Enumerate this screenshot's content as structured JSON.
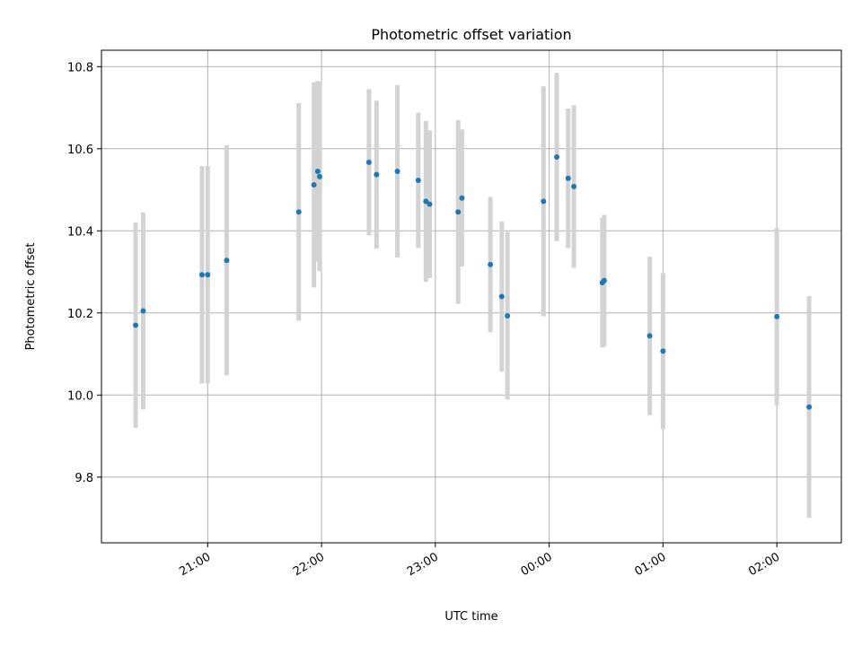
{
  "chart_data": {
    "type": "scatter",
    "title": "Photometric offset variation",
    "xlabel": "UTC time",
    "ylabel": "Photometric offset",
    "x_is_time": true,
    "xlim": [
      "20:04",
      "02:34"
    ],
    "ylim": [
      9.64,
      10.84
    ],
    "x_ticks": [
      "21:00",
      "22:00",
      "23:00",
      "00:00",
      "01:00",
      "02:00"
    ],
    "y_ticks": [
      9.8,
      10.0,
      10.2,
      10.4,
      10.6,
      10.8
    ],
    "grid": true,
    "point_color": "#1f77b4",
    "errorbar_color": "#d3d3d3",
    "points": [
      {
        "t": "20:22",
        "y": 10.17,
        "err": 0.25
      },
      {
        "t": "20:26",
        "y": 10.205,
        "err": 0.24
      },
      {
        "t": "20:57",
        "y": 10.293,
        "err": 0.265
      },
      {
        "t": "21:00",
        "y": 10.293,
        "err": 0.265
      },
      {
        "t": "21:10",
        "y": 10.328,
        "err": 0.28
      },
      {
        "t": "21:48",
        "y": 10.446,
        "err": 0.265
      },
      {
        "t": "21:56",
        "y": 10.512,
        "err": 0.25
      },
      {
        "t": "21:58",
        "y": 10.545,
        "err": 0.22
      },
      {
        "t": "21:59",
        "y": 10.532,
        "err": 0.23
      },
      {
        "t": "22:25",
        "y": 10.567,
        "err": 0.178
      },
      {
        "t": "22:29",
        "y": 10.537,
        "err": 0.18
      },
      {
        "t": "22:40",
        "y": 10.545,
        "err": 0.21
      },
      {
        "t": "22:51",
        "y": 10.523,
        "err": 0.165
      },
      {
        "t": "22:55",
        "y": 10.472,
        "err": 0.196
      },
      {
        "t": "22:57",
        "y": 10.465,
        "err": 0.18
      },
      {
        "t": "23:12",
        "y": 10.446,
        "err": 0.224
      },
      {
        "t": "23:14",
        "y": 10.48,
        "err": 0.167
      },
      {
        "t": "23:29",
        "y": 10.318,
        "err": 0.165
      },
      {
        "t": "23:35",
        "y": 10.24,
        "err": 0.183
      },
      {
        "t": "23:38",
        "y": 10.193,
        "err": 0.204
      },
      {
        "t": "23:57",
        "y": 10.472,
        "err": 0.28
      },
      {
        "t": "00:04",
        "y": 10.58,
        "err": 0.205
      },
      {
        "t": "00:10",
        "y": 10.528,
        "err": 0.17
      },
      {
        "t": "00:13",
        "y": 10.508,
        "err": 0.198
      },
      {
        "t": "00:28",
        "y": 10.274,
        "err": 0.158
      },
      {
        "t": "00:29",
        "y": 10.279,
        "err": 0.16
      },
      {
        "t": "00:53",
        "y": 10.144,
        "err": 0.193
      },
      {
        "t": "01:00",
        "y": 10.107,
        "err": 0.19
      },
      {
        "t": "02:00",
        "y": 10.191,
        "err": 0.216
      },
      {
        "t": "02:17",
        "y": 9.971,
        "err": 0.27
      }
    ]
  }
}
